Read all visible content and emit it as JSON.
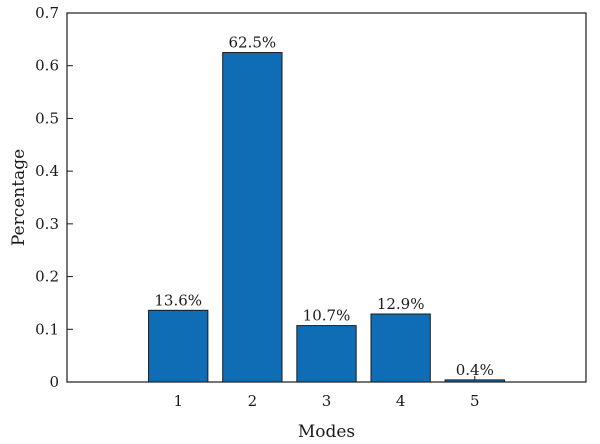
{
  "chart_data": {
    "type": "bar",
    "categories": [
      "1",
      "2",
      "3",
      "4",
      "5"
    ],
    "values": [
      0.136,
      0.625,
      0.107,
      0.129,
      0.004
    ],
    "data_labels": [
      "13.6%",
      "62.5%",
      "10.7%",
      "12.9%",
      "0.4%"
    ],
    "title": "",
    "xlabel": "Modes",
    "ylabel": "Percentage",
    "ylim": [
      0,
      0.7
    ],
    "yticks": [
      0,
      0.1,
      0.2,
      0.3,
      0.4,
      0.5,
      0.6,
      0.7
    ],
    "ytick_labels": [
      "0",
      "0.1",
      "0.2",
      "0.3",
      "0.4",
      "0.5",
      "0.6",
      "0.7"
    ],
    "grid": false,
    "legend": "none",
    "bar_color": "#0f6db5",
    "bar_edge_color": "#1a1a1a"
  }
}
